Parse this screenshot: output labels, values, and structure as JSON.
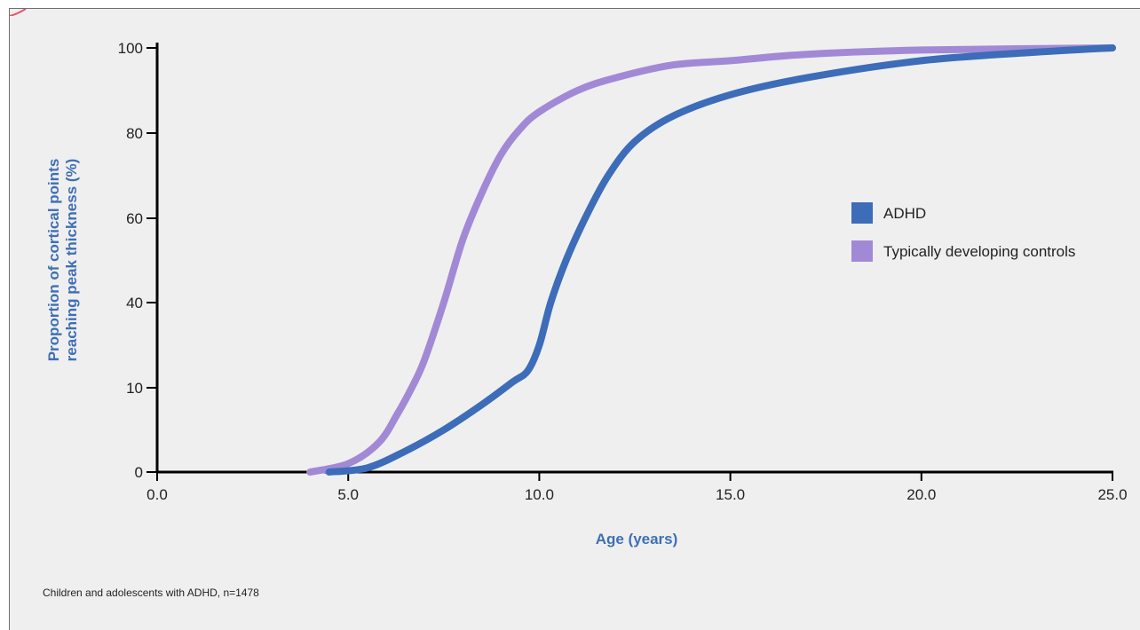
{
  "chart_data": {
    "type": "line",
    "xlabel": "Age (years)",
    "ylabel_lines": [
      "Proportion of cortical points",
      "reaching peak thickness (%)"
    ],
    "x_ticks": [
      "0.0",
      "5.0",
      "10.0",
      "15.0",
      "20.0",
      "25.0"
    ],
    "y_ticks": [
      "0",
      "10",
      "40",
      "60",
      "80",
      "100"
    ],
    "xlim": [
      0,
      25
    ],
    "ylim": [
      0,
      100
    ],
    "grid": false,
    "legend_position": "right",
    "series": [
      {
        "name": "ADHD",
        "color": "#3d6cb9",
        "points": [
          [
            4.5,
            0
          ],
          [
            5.5,
            0.5
          ],
          [
            6.5,
            2.5
          ],
          [
            7.5,
            5
          ],
          [
            8.5,
            8
          ],
          [
            9.3,
            12
          ],
          [
            9.7,
            16
          ],
          [
            10.0,
            25
          ],
          [
            10.3,
            40
          ],
          [
            10.7,
            50
          ],
          [
            11.2,
            60
          ],
          [
            11.8,
            70
          ],
          [
            12.5,
            78
          ],
          [
            13.5,
            84
          ],
          [
            15.0,
            89
          ],
          [
            17.0,
            93
          ],
          [
            20.0,
            97
          ],
          [
            23.0,
            99
          ],
          [
            25.0,
            100
          ]
        ]
      },
      {
        "name": "Typically developing controls",
        "color": "#a289d6",
        "points": [
          [
            4.0,
            0
          ],
          [
            5.0,
            1
          ],
          [
            5.8,
            3.5
          ],
          [
            6.3,
            7
          ],
          [
            6.7,
            11
          ],
          [
            7.0,
            20
          ],
          [
            7.5,
            40
          ],
          [
            8.0,
            55
          ],
          [
            8.5,
            66
          ],
          [
            9.0,
            75
          ],
          [
            9.5,
            81
          ],
          [
            10.0,
            85
          ],
          [
            11.0,
            90
          ],
          [
            12.0,
            93
          ],
          [
            13.5,
            96
          ],
          [
            15.0,
            97
          ],
          [
            17.0,
            98.5
          ],
          [
            20.0,
            99.5
          ],
          [
            25.0,
            100
          ]
        ]
      }
    ]
  },
  "footnote": "Children and adolescents with ADHD, n=1478"
}
